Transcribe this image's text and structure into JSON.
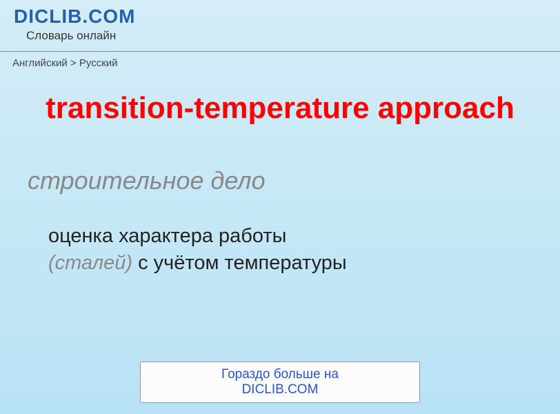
{
  "header": {
    "site_title": "DICLIB.COM",
    "subtitle": "Словарь онлайн"
  },
  "breadcrumb": {
    "text": "Английский > Русский"
  },
  "main": {
    "title": "transition-temperature approach",
    "category": "строительное дело",
    "definition_part1": "оценка характера работы",
    "definition_italic": "(сталей)",
    "definition_part2": " с учётом температуры"
  },
  "footer": {
    "button_label": "Гораздо больше на DICLIB.COM"
  },
  "colors": {
    "bg_top": "#d4edf7",
    "bg_bottom": "#b8e2f5",
    "title_red": "#ff0000",
    "site_blue": "#2461a8",
    "gray_italic": "#888888",
    "link_blue": "#2a55c9"
  }
}
